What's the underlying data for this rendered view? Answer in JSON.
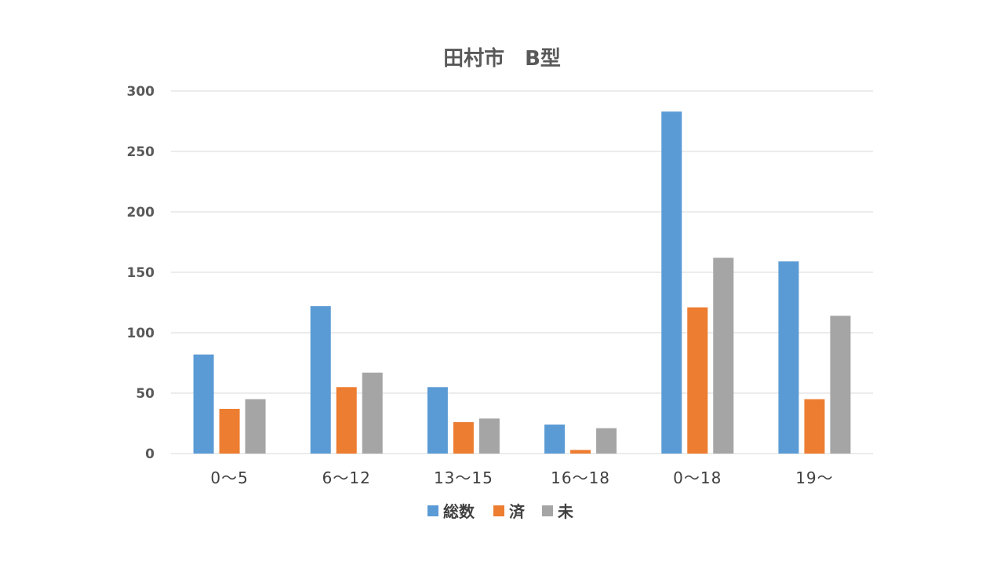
{
  "chart_data": {
    "type": "bar",
    "title": "田村市　B型",
    "xlabel": "",
    "ylabel": "",
    "ylim": [
      0,
      300
    ],
    "yticks": [
      0,
      50,
      100,
      150,
      200,
      250,
      300
    ],
    "grid": true,
    "legend_position": "bottom",
    "categories": [
      "0～5",
      "6～12",
      "13～15",
      "16～18",
      "0～18",
      "19～"
    ],
    "series": [
      {
        "name": "総数",
        "color": "#5b9bd5",
        "values": [
          82,
          122,
          55,
          24,
          283,
          159
        ]
      },
      {
        "name": "済",
        "color": "#ed7d31",
        "values": [
          37,
          55,
          26,
          3,
          121,
          45
        ]
      },
      {
        "name": "未",
        "color": "#a5a5a5",
        "values": [
          45,
          67,
          29,
          21,
          162,
          114
        ]
      }
    ]
  }
}
